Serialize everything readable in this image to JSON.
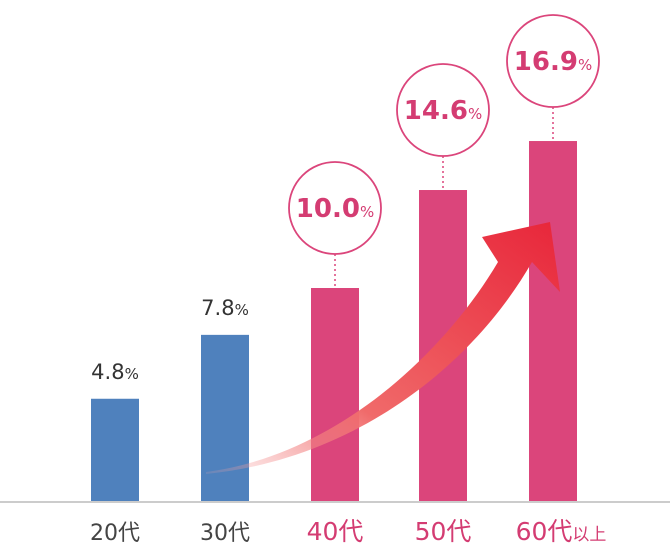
{
  "chart_data": {
    "type": "bar",
    "categories": [
      "20代",
      "30代",
      "40代",
      "50代",
      "60代以上"
    ],
    "category_parts": [
      {
        "main": "20代",
        "suffix": ""
      },
      {
        "main": "30代",
        "suffix": ""
      },
      {
        "main": "40代",
        "suffix": ""
      },
      {
        "main": "50代",
        "suffix": ""
      },
      {
        "main": "60代",
        "suffix": "以上"
      }
    ],
    "values": [
      4.8,
      7.8,
      10.0,
      14.6,
      16.9
    ],
    "value_labels": [
      "4.8",
      "7.8",
      "10.0",
      "14.6",
      "16.9"
    ],
    "unit": "%",
    "ylim": [
      0,
      20
    ],
    "title": "",
    "xlabel": "",
    "ylabel": "",
    "grid": false,
    "legend": "none",
    "highlight_from_index": 2,
    "annotations": [
      "trend-arrow-up"
    ]
  },
  "colors": {
    "normal": "#4f81bd",
    "highlight": "#db457b",
    "arrow": "#e8263a",
    "normal_label": "#333333",
    "highlight_label": "#d43c72",
    "axis": "#cccccc",
    "axis_label": "#444444"
  }
}
